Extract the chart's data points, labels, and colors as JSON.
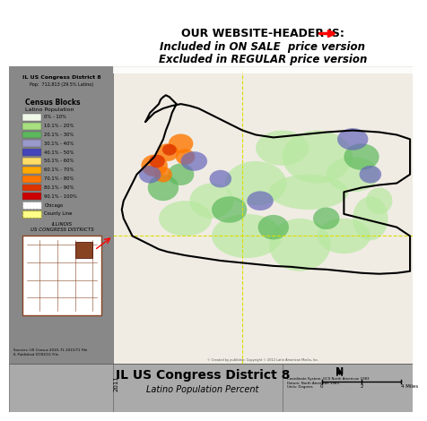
{
  "title": "IL US Congress District 8",
  "subtitle": "Latino Population Percent",
  "district_header": "IL US Congress District 8",
  "pop_text": "Pop:  712,813 (29.5% Latino)",
  "legend_title": "Census Blocks",
  "legend_subtitle": "Latino Population",
  "legend_items": [
    {
      "label": "0% - 10%",
      "color": "#f0f8e8"
    },
    {
      "label": "10.1% - 20%",
      "color": "#a8e080"
    },
    {
      "label": "20.1% - 30%",
      "color": "#5cb85c"
    },
    {
      "label": "30.1% - 40%",
      "color": "#9999cc"
    },
    {
      "label": "40.1% - 50%",
      "color": "#4444bb"
    },
    {
      "label": "50.1% - 60%",
      "color": "#ffdd66"
    },
    {
      "label": "60.1% - 70%",
      "color": "#ffaa00"
    },
    {
      "label": "70.1% - 80%",
      "color": "#ff7700"
    },
    {
      "label": "80.1% - 90%",
      "color": "#dd3300"
    },
    {
      "label": "90.1% - 100%",
      "color": "#cc0000"
    },
    {
      "label": "Chicago",
      "color": "#dddddd",
      "hatch": "..."
    },
    {
      "label": "County Line",
      "color": "#ffff88",
      "hatch": "///"
    }
  ],
  "inset_title": "ILLINOIS\nUS CONGRESS DISTRICTS",
  "year": "2011",
  "bg_left_panel": "#888888",
  "bg_map": "#e8e8e8",
  "bg_bottom": "#aaaaaa",
  "border_color": "#333333",
  "map_border_color": "#000000",
  "watermark": "© Created by publisher. Copyright © 2012 Latin American Media, Inc.",
  "north_arrow_text": "N",
  "scale_text": "0    2    4 Miles",
  "coord_system": "Coordinate System: GCS North American 1983\nDatum: North American 1983\nUnits: Degrees",
  "sources": "Sources: US Census 2010, FL 2011/71 File\nIL Published 07/02/11 File"
}
